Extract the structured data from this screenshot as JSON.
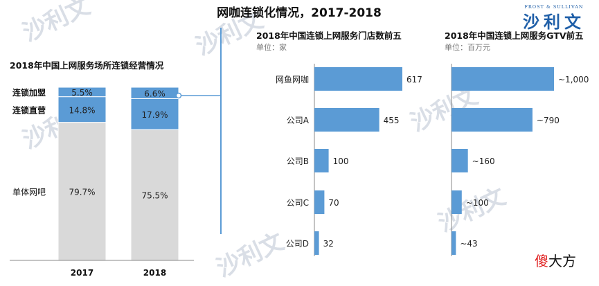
{
  "title": "网咖连锁化情况，2017-2018",
  "logo": {
    "text": "沙利文",
    "top_text": "FROST & SULLIVAN",
    "color": "#1f5fa8"
  },
  "watermark_text": "沙利文",
  "corner_brand": {
    "first": "傻",
    "rest": "大方",
    "first_color": "#e02020"
  },
  "colors": {
    "blue": "#5b9bd5",
    "grey": "#d9d9d9",
    "divider": "#5b9bd5",
    "text": "#222222"
  },
  "chart_data": [
    {
      "type": "bar",
      "stacked": true,
      "title": "2018年中国上网服务场所连锁经营情况",
      "categories": [
        "2017",
        "2018"
      ],
      "series": [
        {
          "name": "单体网吧",
          "values": [
            79.7,
            75.5
          ],
          "labels": [
            "79.7%",
            "75.5%"
          ],
          "color": "#d9d9d9"
        },
        {
          "name": "连锁直营",
          "values": [
            14.8,
            17.9
          ],
          "labels": [
            "14.8%",
            "17.9%"
          ],
          "color": "#5b9bd5"
        },
        {
          "name": "连锁加盟",
          "values": [
            5.5,
            6.6
          ],
          "labels": [
            "5.5%",
            "6.6%"
          ],
          "color": "#5b9bd5"
        }
      ],
      "ylim": [
        0,
        100
      ]
    },
    {
      "type": "bar",
      "orientation": "horizontal",
      "title": "2018年中国连锁上网服务门店数前五",
      "unit": "单位：家",
      "categories": [
        "网鱼网咖",
        "公司A",
        "公司B",
        "公司C",
        "公司D"
      ],
      "values": [
        617,
        455,
        100,
        70,
        32
      ],
      "labels": [
        "617",
        "455",
        "100",
        "70",
        "32"
      ],
      "xlim": [
        0,
        617
      ],
      "color": "#5b9bd5"
    },
    {
      "type": "bar",
      "orientation": "horizontal",
      "title": "2018年中国连锁上网服务GTV前五",
      "unit": "单位：百万元",
      "categories": [
        "网鱼网咖",
        "公司A",
        "公司B",
        "公司C",
        "公司D"
      ],
      "values": [
        1000,
        790,
        160,
        100,
        43
      ],
      "labels": [
        "~1,000",
        "~790",
        "~160",
        "~100",
        "~43"
      ],
      "xlim": [
        0,
        1000
      ],
      "color": "#5b9bd5"
    }
  ]
}
